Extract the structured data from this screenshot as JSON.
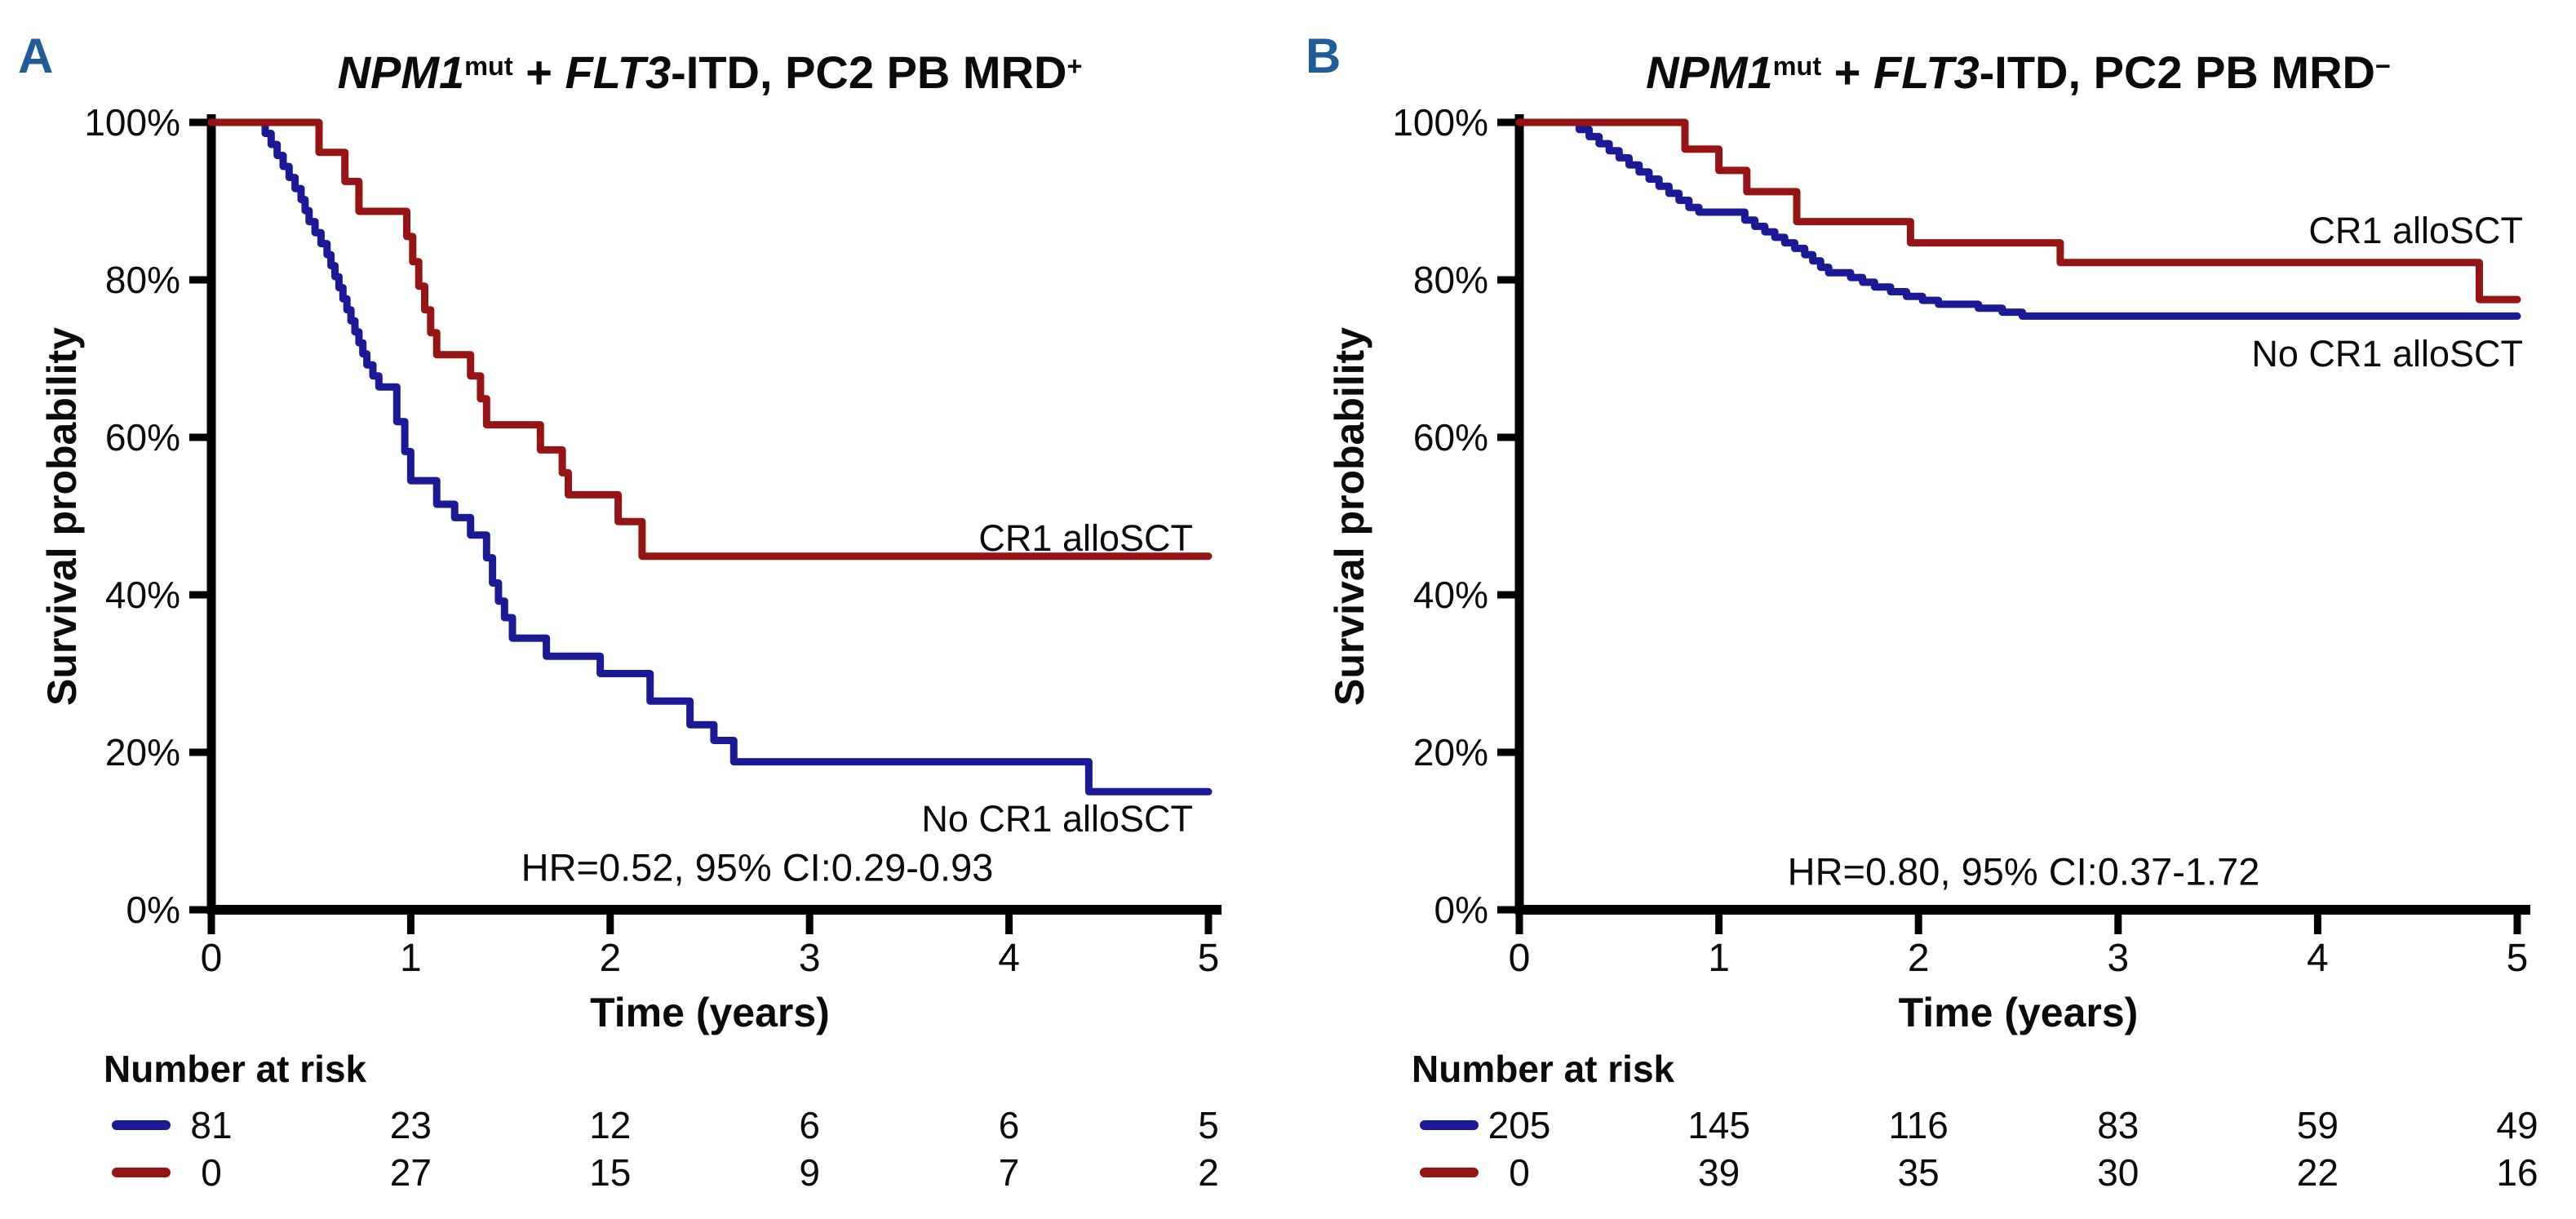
{
  "page": {
    "background": "#ffffff"
  },
  "figure": {
    "panels": [
      {
        "letter": "A",
        "letter_color": "#1f5c99",
        "title_parts": {
          "gene1": "NPM1",
          "sup1": "mut",
          "plus": " + ",
          "gene2": "FLT3",
          "rest": "-ITD, PC2 PB MRD",
          "sup2": "+"
        },
        "title_text": "NPM1^mut + FLT3-ITD, PC2 PB MRD^+",
        "y_axis_label": "Survival probability",
        "x_axis_label": "Time (years)",
        "hr_annotation": "HR=0.52, 95% CI:0.29-0.93",
        "label_red": "CR1 alloSCT",
        "label_blue": "No CR1 alloSCT",
        "risk_header": "Number at risk"
      },
      {
        "letter": "B",
        "letter_color": "#1f5c99",
        "title_parts": {
          "gene1": "NPM1",
          "sup1": "mut",
          "plus": " + ",
          "gene2": "FLT3",
          "rest": "-ITD, PC2 PB MRD",
          "sup2": "−"
        },
        "title_text": "NPM1^mut + FLT3-ITD, PC2 PB MRD^-",
        "y_axis_label": "Survival probability",
        "x_axis_label": "Time (years)",
        "hr_annotation": "HR=0.80, 95% CI:0.37-1.72",
        "label_red": "CR1 alloSCT",
        "label_blue": "No CR1 alloSCT",
        "risk_header": "Number at risk"
      }
    ]
  },
  "chart_data": [
    {
      "type": "line",
      "subtype": "kaplan-meier-step",
      "title": "NPM1^mut + FLT3-ITD, PC2 PB MRD^+",
      "xlabel": "Time (years)",
      "ylabel": "Survival probability",
      "xlim": [
        0,
        5
      ],
      "ylim": [
        0,
        100
      ],
      "x_ticks": [
        "0",
        "1",
        "2",
        "3",
        "4",
        "5"
      ],
      "y_ticks": [
        "0%",
        "20%",
        "40%",
        "60%",
        "80%",
        "100%"
      ],
      "grid": false,
      "annotation": "HR=0.52, 95% CI:0.29-0.93",
      "series": [
        {
          "name": "No CR1 alloSCT",
          "color": "#1a1a96",
          "steps": [
            [
              0,
              100
            ],
            [
              0.27,
              98.6
            ],
            [
              0.3,
              97.2
            ],
            [
              0.33,
              95.8
            ],
            [
              0.36,
              94.4
            ],
            [
              0.39,
              93.0
            ],
            [
              0.42,
              91.6
            ],
            [
              0.45,
              90.2
            ],
            [
              0.47,
              88.8
            ],
            [
              0.49,
              87.4
            ],
            [
              0.52,
              86.0
            ],
            [
              0.55,
              84.6
            ],
            [
              0.58,
              83.2
            ],
            [
              0.6,
              81.8
            ],
            [
              0.62,
              80.4
            ],
            [
              0.64,
              79.0
            ],
            [
              0.66,
              77.6
            ],
            [
              0.68,
              76.2
            ],
            [
              0.7,
              74.8
            ],
            [
              0.72,
              73.4
            ],
            [
              0.74,
              72.0
            ],
            [
              0.76,
              70.6
            ],
            [
              0.78,
              69.2
            ],
            [
              0.81,
              67.8
            ],
            [
              0.84,
              66.4
            ],
            [
              0.93,
              62.0
            ],
            [
              0.97,
              58.2
            ],
            [
              1.0,
              54.5
            ],
            [
              1.13,
              51.5
            ],
            [
              1.22,
              49.8
            ],
            [
              1.3,
              47.6
            ],
            [
              1.38,
              44.7
            ],
            [
              1.41,
              41.5
            ],
            [
              1.44,
              39.2
            ],
            [
              1.47,
              37.1
            ],
            [
              1.51,
              34.5
            ],
            [
              1.68,
              32.2
            ],
            [
              1.95,
              30.0
            ],
            [
              2.2,
              26.5
            ],
            [
              2.4,
              23.5
            ],
            [
              2.52,
              21.5
            ],
            [
              2.62,
              18.8
            ],
            [
              4.4,
              15.0
            ],
            [
              5.0,
              15.0
            ]
          ]
        },
        {
          "name": "CR1 alloSCT",
          "color": "#961414",
          "steps": [
            [
              0,
              100
            ],
            [
              0.54,
              96.2
            ],
            [
              0.67,
              92.5
            ],
            [
              0.74,
              88.7
            ],
            [
              0.98,
              85.5
            ],
            [
              1.01,
              82.3
            ],
            [
              1.04,
              79.2
            ],
            [
              1.07,
              76.2
            ],
            [
              1.1,
              73.3
            ],
            [
              1.13,
              70.5
            ],
            [
              1.3,
              67.8
            ],
            [
              1.35,
              64.9
            ],
            [
              1.38,
              61.6
            ],
            [
              1.65,
              58.4
            ],
            [
              1.76,
              55.5
            ],
            [
              1.79,
              52.7
            ],
            [
              2.04,
              49.3
            ],
            [
              2.16,
              44.9
            ],
            [
              5.0,
              44.9
            ]
          ]
        }
      ],
      "number_at_risk": {
        "header": "Number at risk",
        "time_points": [
          "0",
          "1",
          "2",
          "3",
          "4",
          "5"
        ],
        "rows": [
          {
            "series": "No CR1 alloSCT",
            "color": "#1a1a96",
            "values": [
              "81",
              "23",
              "12",
              "6",
              "6",
              "5"
            ]
          },
          {
            "series": "CR1 alloSCT",
            "color": "#961414",
            "values": [
              "0",
              "27",
              "15",
              "9",
              "7",
              "2"
            ]
          }
        ]
      }
    },
    {
      "type": "line",
      "subtype": "kaplan-meier-step",
      "title": "NPM1^mut + FLT3-ITD, PC2 PB MRD^-",
      "xlabel": "Time (years)",
      "ylabel": "Survival probability",
      "xlim": [
        0,
        5
      ],
      "ylim": [
        0,
        100
      ],
      "x_ticks": [
        "0",
        "1",
        "2",
        "3",
        "4",
        "5"
      ],
      "y_ticks": [
        "0%",
        "20%",
        "40%",
        "60%",
        "80%",
        "100%"
      ],
      "grid": false,
      "annotation": "HR=0.80, 95% CI:0.37-1.72",
      "series": [
        {
          "name": "No CR1 alloSCT",
          "color": "#1a1a96",
          "steps": [
            [
              0,
              100
            ],
            [
              0.3,
              99.1
            ],
            [
              0.35,
              98.2
            ],
            [
              0.4,
              97.3
            ],
            [
              0.45,
              96.4
            ],
            [
              0.5,
              95.5
            ],
            [
              0.55,
              94.6
            ],
            [
              0.6,
              93.7
            ],
            [
              0.65,
              92.8
            ],
            [
              0.7,
              91.9
            ],
            [
              0.75,
              91.0
            ],
            [
              0.8,
              90.1
            ],
            [
              0.85,
              89.2
            ],
            [
              0.9,
              88.6
            ],
            [
              1.13,
              87.6
            ],
            [
              1.18,
              86.8
            ],
            [
              1.23,
              86.1
            ],
            [
              1.28,
              85.4
            ],
            [
              1.33,
              84.7
            ],
            [
              1.38,
              84.0
            ],
            [
              1.43,
              83.2
            ],
            [
              1.47,
              82.4
            ],
            [
              1.51,
              81.6
            ],
            [
              1.55,
              80.9
            ],
            [
              1.66,
              80.3
            ],
            [
              1.72,
              79.7
            ],
            [
              1.78,
              79.1
            ],
            [
              1.86,
              78.5
            ],
            [
              1.94,
              77.9
            ],
            [
              2.02,
              77.4
            ],
            [
              2.1,
              76.9
            ],
            [
              2.3,
              76.4
            ],
            [
              2.42,
              75.9
            ],
            [
              2.52,
              75.4
            ],
            [
              5.0,
              75.4
            ]
          ]
        },
        {
          "name": "CR1 alloSCT",
          "color": "#961414",
          "steps": [
            [
              0,
              100
            ],
            [
              0.83,
              96.6
            ],
            [
              1.0,
              93.9
            ],
            [
              1.14,
              91.2
            ],
            [
              1.39,
              87.4
            ],
            [
              1.96,
              84.7
            ],
            [
              2.71,
              82.2
            ],
            [
              4.81,
              77.5
            ],
            [
              5.0,
              77.5
            ]
          ]
        }
      ],
      "number_at_risk": {
        "header": "Number at risk",
        "time_points": [
          "0",
          "1",
          "2",
          "3",
          "4",
          "5"
        ],
        "rows": [
          {
            "series": "No CR1 alloSCT",
            "color": "#1a1a96",
            "values": [
              "205",
              "145",
              "116",
              "83",
              "59",
              "49"
            ]
          },
          {
            "series": "CR1 alloSCT",
            "color": "#961414",
            "values": [
              "0",
              "39",
              "35",
              "30",
              "22",
              "16"
            ]
          }
        ]
      }
    }
  ]
}
